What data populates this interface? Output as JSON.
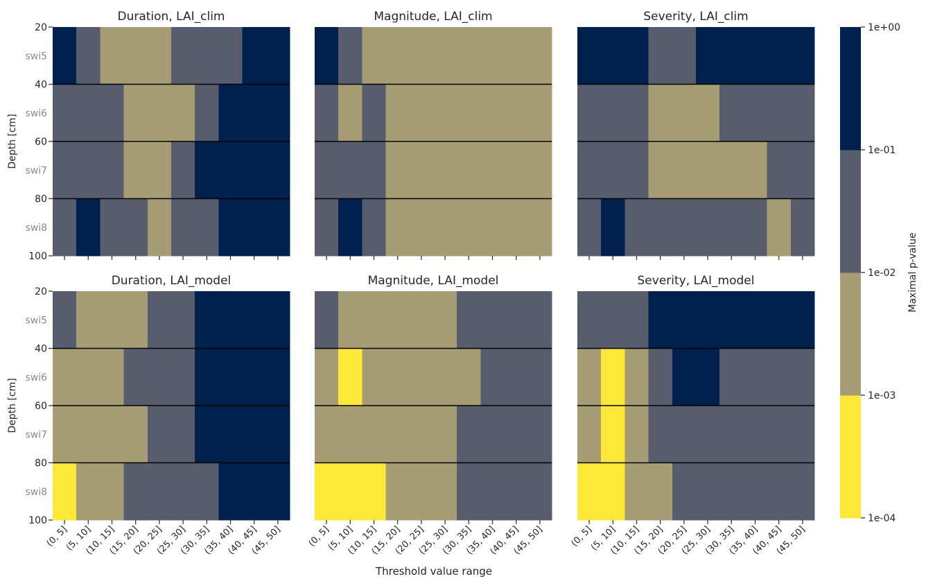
{
  "figure": {
    "xlabel": "Threshold value range"
  },
  "colors": {
    "level_0": "#fde838",
    "level_1": "#a69d75",
    "level_2": "#575d6d",
    "level_3": "#00204d"
  },
  "chart_data": {
    "type": "heatmap",
    "x_categories": [
      "(0, 5]",
      "(5, 10]",
      "(10, 15]",
      "(15, 20]",
      "(20, 25]",
      "(25, 30]",
      "(30, 35]",
      "(35, 40]",
      "(40, 45]",
      "(45, 50]"
    ],
    "y_rows": [
      "swi5",
      "swi6",
      "swi7",
      "swi8"
    ],
    "y_depth_ticks": [
      "20",
      "40",
      "60",
      "80",
      "100"
    ],
    "ylabel": "Depth [cm]",
    "xlabel": "Threshold value range",
    "colorbar": {
      "label": "Maximal p-value",
      "scale": "log",
      "ticks": [
        "1e-04",
        "1e-03",
        "1e-02",
        "1e-01",
        "1e+00"
      ],
      "bins": [
        "1e-04 to 1e-03",
        "1e-03 to 1e-02",
        "1e-02 to 1e-01",
        "1e-01 to 1e+00"
      ]
    },
    "panels": [
      {
        "title": "Duration, LAI_clim",
        "grid": [
          [
            3,
            2,
            1,
            1,
            1,
            2,
            2,
            2,
            3,
            3
          ],
          [
            2,
            2,
            2,
            1,
            1,
            1,
            2,
            3,
            3,
            3
          ],
          [
            2,
            2,
            2,
            1,
            1,
            2,
            3,
            3,
            3,
            3
          ],
          [
            2,
            3,
            2,
            2,
            1,
            2,
            2,
            3,
            3,
            3
          ]
        ]
      },
      {
        "title": "Magnitude, LAI_clim",
        "grid": [
          [
            3,
            2,
            1,
            1,
            1,
            1,
            1,
            1,
            1,
            1
          ],
          [
            2,
            1,
            2,
            1,
            1,
            1,
            1,
            1,
            1,
            1
          ],
          [
            2,
            2,
            2,
            1,
            1,
            1,
            1,
            1,
            1,
            1
          ],
          [
            2,
            3,
            2,
            1,
            1,
            1,
            1,
            1,
            1,
            1
          ]
        ]
      },
      {
        "title": "Severity, LAI_clim",
        "grid": [
          [
            3,
            3,
            3,
            2,
            2,
            3,
            3,
            3,
            3,
            3
          ],
          [
            2,
            2,
            2,
            1,
            1,
            1,
            2,
            2,
            2,
            2
          ],
          [
            2,
            2,
            2,
            1,
            1,
            1,
            1,
            1,
            2,
            2
          ],
          [
            2,
            3,
            2,
            2,
            2,
            2,
            2,
            2,
            1,
            2
          ]
        ]
      },
      {
        "title": "Duration, LAI_model",
        "grid": [
          [
            2,
            1,
            1,
            1,
            2,
            2,
            3,
            3,
            3,
            3
          ],
          [
            1,
            1,
            1,
            2,
            2,
            2,
            3,
            3,
            3,
            3
          ],
          [
            1,
            1,
            1,
            1,
            2,
            2,
            3,
            3,
            3,
            3
          ],
          [
            0,
            1,
            1,
            2,
            2,
            2,
            2,
            3,
            3,
            3
          ]
        ]
      },
      {
        "title": "Magnitude, LAI_model",
        "grid": [
          [
            2,
            1,
            1,
            1,
            1,
            1,
            2,
            2,
            2,
            2
          ],
          [
            1,
            0,
            1,
            1,
            1,
            1,
            1,
            2,
            2,
            2
          ],
          [
            1,
            1,
            1,
            1,
            1,
            1,
            2,
            2,
            2,
            2
          ],
          [
            0,
            0,
            0,
            1,
            1,
            1,
            2,
            2,
            2,
            2
          ]
        ]
      },
      {
        "title": "Severity, LAI_model",
        "grid": [
          [
            2,
            2,
            2,
            3,
            3,
            3,
            3,
            3,
            3,
            3
          ],
          [
            1,
            0,
            1,
            2,
            3,
            3,
            2,
            2,
            2,
            2
          ],
          [
            1,
            0,
            1,
            2,
            2,
            2,
            2,
            2,
            2,
            2
          ],
          [
            0,
            0,
            1,
            1,
            2,
            2,
            2,
            2,
            2,
            2
          ]
        ]
      }
    ]
  }
}
